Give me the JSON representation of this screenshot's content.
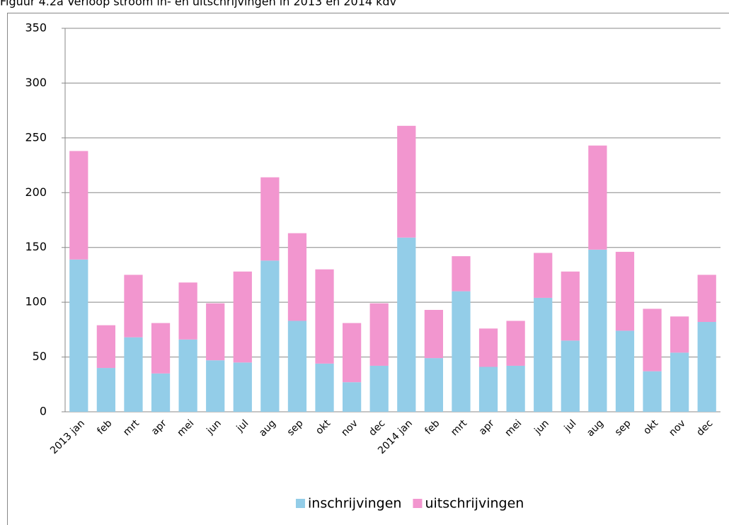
{
  "chart_data": {
    "type": "stacked_bar",
    "title": "Figuur 4.2a Verloop stroom in- en uitschrijvingen in 2013 en 2014 kdv",
    "categories": [
      "2013 jan",
      "feb",
      "mrt",
      "apr",
      "mei",
      "jun",
      "jul",
      "aug",
      "sep",
      "okt",
      "nov",
      "dec",
      "2014 jan",
      "feb",
      "mrt",
      "apr",
      "mei",
      "jun",
      "jul",
      "aug",
      "sep",
      "okt",
      "nov",
      "dec"
    ],
    "series": [
      {
        "name": "inschrijvingen",
        "color": "#93cde8",
        "values": [
          139,
          40,
          68,
          35,
          66,
          47,
          45,
          138,
          83,
          44,
          27,
          42,
          159,
          49,
          110,
          41,
          42,
          104,
          65,
          148,
          74,
          37,
          54,
          82
        ]
      },
      {
        "name": "uitschrijvingen",
        "color": "#f296cf",
        "values": [
          99,
          39,
          57,
          46,
          52,
          52,
          83,
          76,
          80,
          86,
          54,
          57,
          102,
          44,
          32,
          35,
          41,
          41,
          63,
          95,
          72,
          57,
          33,
          43
        ]
      }
    ],
    "ylim": [
      0,
      350
    ],
    "yticks": [
      0,
      50,
      100,
      150,
      200,
      250,
      300,
      350
    ],
    "grid": true,
    "legend": "bottom"
  }
}
